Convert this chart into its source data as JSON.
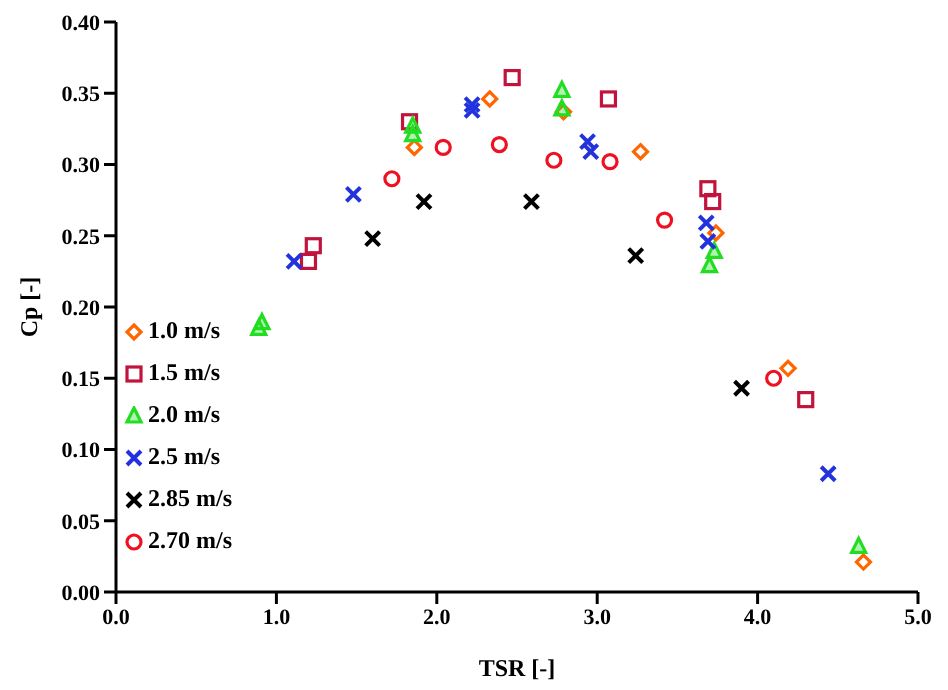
{
  "chart_data": {
    "type": "scatter",
    "xlabel": "TSR [-]",
    "ylabel": "Cp [-]",
    "xlim": [
      0,
      5
    ],
    "ylim": [
      0,
      0.4
    ],
    "xticks": [
      {
        "value": 0,
        "label": "0.0"
      },
      {
        "value": 1,
        "label": "1.0"
      },
      {
        "value": 2,
        "label": "2.0"
      },
      {
        "value": 3,
        "label": "3.0"
      },
      {
        "value": 4,
        "label": "4.0"
      },
      {
        "value": 5,
        "label": "5.0"
      }
    ],
    "yticks": [
      {
        "value": 0,
        "label": "0.00"
      },
      {
        "value": 0.05,
        "label": "0.05"
      },
      {
        "value": 0.1,
        "label": "0.10"
      },
      {
        "value": 0.15,
        "label": "0.15"
      },
      {
        "value": 0.2,
        "label": "0.20"
      },
      {
        "value": 0.25,
        "label": "0.25"
      },
      {
        "value": 0.3,
        "label": "0.30"
      },
      {
        "value": 0.35,
        "label": "0.35"
      },
      {
        "value": 0.4,
        "label": "0.40"
      }
    ],
    "grid": false,
    "legend": "bottom left",
    "series": [
      {
        "name": "1.0 m/s",
        "color": "#ff6600",
        "marker": "diamond",
        "x": [
          1.86,
          2.33,
          2.79,
          3.27,
          3.74,
          4.19,
          4.66
        ],
        "values": [
          0.312,
          0.346,
          0.337,
          0.309,
          0.252,
          0.157,
          0.021
        ]
      },
      {
        "name": "1.5 m/s",
        "color": "#c0143c",
        "marker": "square",
        "x": [
          1.2,
          1.23,
          1.83,
          2.47,
          3.07,
          3.69,
          3.72,
          4.3
        ],
        "values": [
          0.232,
          0.243,
          0.33,
          0.361,
          0.346,
          0.283,
          0.274,
          0.135
        ]
      },
      {
        "name": "2.0 m/s",
        "color": "#22dd22",
        "marker": "triangle",
        "x": [
          0.89,
          0.91,
          1.85,
          1.85,
          2.78,
          2.78,
          3.73,
          3.7,
          4.63
        ],
        "values": [
          0.185,
          0.189,
          0.327,
          0.321,
          0.352,
          0.339,
          0.239,
          0.229,
          0.032
        ]
      },
      {
        "name": "2.5 m/s",
        "color": "#2233dd",
        "marker": "cross",
        "x": [
          1.11,
          1.48,
          2.22,
          2.22,
          2.94,
          2.96,
          3.68,
          3.69,
          4.44
        ],
        "values": [
          0.232,
          0.279,
          0.342,
          0.338,
          0.316,
          0.309,
          0.259,
          0.246,
          0.083
        ]
      },
      {
        "name": "2.85 m/s",
        "color": "#000000",
        "marker": "cross",
        "x": [
          1.6,
          1.92,
          2.59,
          3.24,
          3.9
        ],
        "values": [
          0.248,
          0.274,
          0.274,
          0.236,
          0.143
        ]
      },
      {
        "name": "2.70 m/s",
        "color": "#ee1122",
        "marker": "circle",
        "x": [
          1.72,
          2.04,
          2.39,
          2.73,
          3.08,
          3.42,
          4.1
        ],
        "values": [
          0.29,
          0.312,
          0.314,
          0.303,
          0.302,
          0.261,
          0.15
        ]
      }
    ]
  }
}
